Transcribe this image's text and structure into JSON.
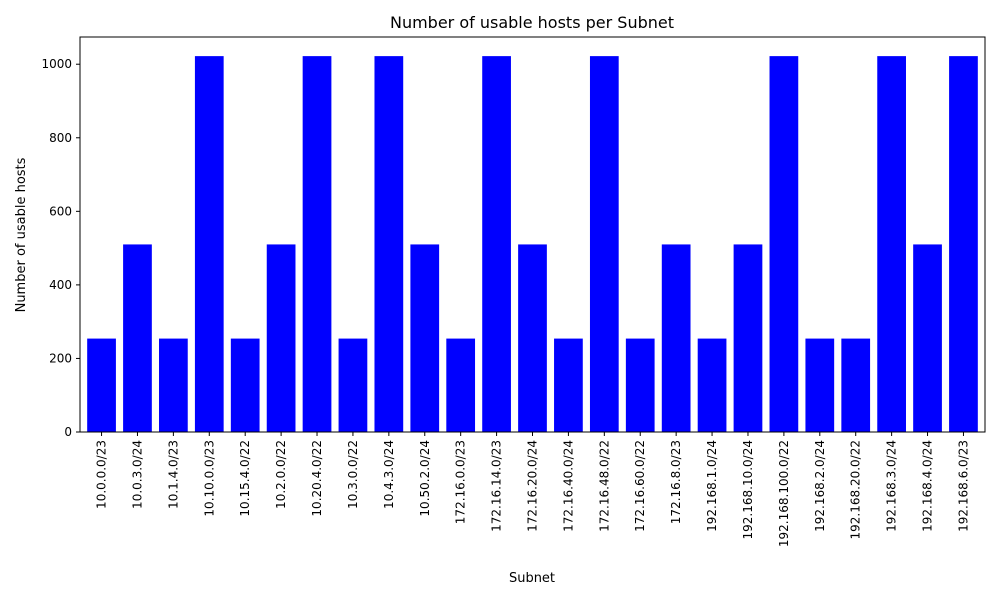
{
  "chart_data": {
    "type": "bar",
    "title": "Number of usable hosts per Subnet",
    "xlabel": "Subnet",
    "ylabel": "Number of usable hosts",
    "ylim": [
      0,
      1074
    ],
    "yticks": [
      0,
      200,
      400,
      600,
      800,
      1000
    ],
    "bar_color": "#0000ff",
    "grid": false,
    "categories": [
      "10.0.0.0/23",
      "10.0.3.0/24",
      "10.1.4.0/23",
      "10.10.0.0/23",
      "10.15.4.0/22",
      "10.2.0.0/22",
      "10.20.4.0/22",
      "10.3.0.0/22",
      "10.4.3.0/24",
      "10.50.2.0/24",
      "172.16.0.0/23",
      "172.16.14.0/23",
      "172.16.20.0/24",
      "172.16.40.0/24",
      "172.16.48.0/22",
      "172.16.60.0/22",
      "172.16.8.0/23",
      "192.168.1.0/24",
      "192.168.10.0/24",
      "192.168.100.0/22",
      "192.168.2.0/24",
      "192.168.20.0/22",
      "192.168.3.0/24",
      "192.168.4.0/24",
      "192.168.6.0/23"
    ],
    "values": [
      254,
      510,
      254,
      1022,
      254,
      510,
      1022,
      254,
      1022,
      510,
      254,
      1022,
      510,
      254,
      1022,
      254,
      510,
      254,
      510,
      1022,
      254,
      254,
      1022,
      510,
      1022
    ]
  }
}
